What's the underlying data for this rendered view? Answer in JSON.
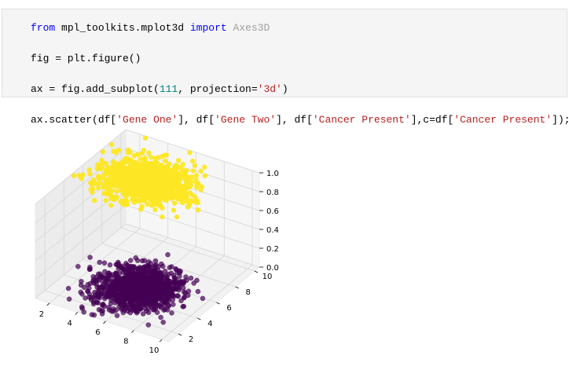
{
  "code_cell": {
    "lines": [
      [
        {
          "t": "from",
          "c": "kw"
        },
        {
          "t": " mpl_toolkits.mplot3d ",
          "c": ""
        },
        {
          "t": "import",
          "c": "kw"
        },
        {
          "t": " ",
          "c": ""
        },
        {
          "t": "Axes3D",
          "c": "gray"
        }
      ],
      [
        {
          "t": "fig = plt.figure()",
          "c": ""
        }
      ],
      [
        {
          "t": "ax = fig.add_subplot(",
          "c": ""
        },
        {
          "t": "111",
          "c": "num"
        },
        {
          "t": ", projection=",
          "c": ""
        },
        {
          "t": "'3d'",
          "c": "str"
        },
        {
          "t": ")",
          "c": ""
        }
      ],
      [
        {
          "t": "ax.scatter(df[",
          "c": ""
        },
        {
          "t": "'Gene One'",
          "c": "str"
        },
        {
          "t": "], df[",
          "c": ""
        },
        {
          "t": "'Gene Two'",
          "c": "str"
        },
        {
          "t": "], df[",
          "c": ""
        },
        {
          "t": "'Cancer Present'",
          "c": "str"
        },
        {
          "t": "],c=df[",
          "c": ""
        },
        {
          "t": "'Cancer Present'",
          "c": "str"
        },
        {
          "t": "]);",
          "c": ""
        }
      ]
    ]
  },
  "colors": {
    "class_0": "#440154",
    "class_1": "#fde725",
    "pane_grid": "#d6d6d6",
    "pane_fill": "#f2f2f2"
  },
  "chart_data": {
    "type": "scatter",
    "projection": "3d",
    "x_ticks": [
      "2",
      "4",
      "6",
      "8",
      "10"
    ],
    "y_ticks": [
      "2",
      "4",
      "6",
      "8",
      "10"
    ],
    "z_ticks": [
      "0.0",
      "0.2",
      "0.4",
      "0.6",
      "0.8",
      "1.0"
    ],
    "xlim": [
      1,
      10.5
    ],
    "ylim": [
      1,
      10.5
    ],
    "zlim": [
      0,
      1
    ],
    "grid": true,
    "series": [
      {
        "z": 1,
        "color": "#fde725",
        "count": 1200,
        "x_mean": 5.2,
        "y_mean": 6.4,
        "x_sd": 1.35,
        "y_sd": 1.1
      },
      {
        "z": 0,
        "color": "#440154",
        "count": 1200,
        "x_mean": 5.6,
        "y_mean": 5.0,
        "x_sd": 1.25,
        "y_sd": 1.2
      }
    ]
  }
}
